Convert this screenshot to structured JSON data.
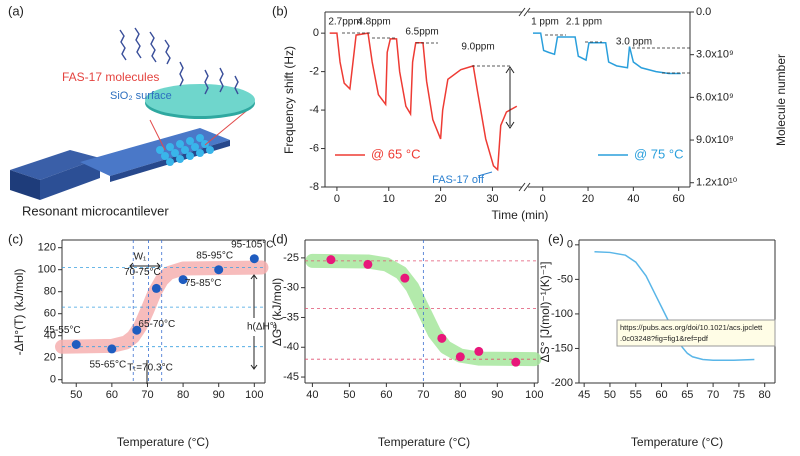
{
  "panel_labels": [
    "(a)",
    "(b)",
    "(c)",
    "(d)",
    "(e)"
  ],
  "illustration": {
    "texts": [
      "FAS-17 molecules",
      "SiO₂ surface",
      "Resonant microcantilever"
    ]
  },
  "chart_data": [
    {
      "type": "line",
      "x_label": "Time (min)",
      "y_label": "Frequency shift (Hz)",
      "xlim": [
        -2.3,
        35.7
      ],
      "xticks": [
        0,
        10,
        20,
        30
      ],
      "ylim": [
        -8,
        1.1
      ],
      "yticks": [
        -8,
        -6,
        -4,
        -2,
        0
      ],
      "series": [
        {
          "name": "@ 65 °C",
          "color": "#ee3b34",
          "x": [
            -1.4,
            0,
            0.6,
            1.4,
            2.5,
            3.1,
            3.7,
            6,
            6.8,
            8,
            9.4,
            9.7,
            10.3,
            11.5,
            12.1,
            13.3,
            14.2,
            14.6,
            15.2,
            16.6,
            17.3,
            18.5,
            20,
            20.4,
            21.4,
            23.9,
            26.3,
            27.1,
            28.7,
            30.2,
            31,
            31.6,
            32.7,
            34.7
          ],
          "values": [
            0,
            0,
            -1.5,
            -2.6,
            -2.9,
            -1.5,
            -0.1,
            0,
            -1.5,
            -3.2,
            -3.7,
            -1,
            -0.3,
            -0.3,
            -2,
            -3.8,
            -4.2,
            -1.5,
            -0.5,
            -0.5,
            -2.5,
            -4.5,
            -5.5,
            -4,
            -2.4,
            -1.9,
            -1.7,
            -3,
            -5.5,
            -6.9,
            -7.1,
            -4.8,
            -4.1,
            -3.8
          ]
        }
      ],
      "annotations": [
        "2.7ppm",
        "4.8ppm",
        "6.5ppm",
        "9.0ppm",
        "FAS-17 off"
      ]
    },
    {
      "type": "line",
      "y2_label": "Molecule number",
      "xlim": [
        -6.5,
        65
      ],
      "xticks": [
        0,
        20,
        40,
        60
      ],
      "ylim": [
        -8,
        1.1
      ],
      "y2lim": [
        12300000000,
        0
      ],
      "y2ticks": [
        {
          "value": 0,
          "label": "0.0"
        },
        {
          "value": 3000000000,
          "label": "3.0x10⁹"
        },
        {
          "value": 6000000000,
          "label": "6.0x10⁹"
        },
        {
          "value": 9000000000,
          "label": "9.0x10⁹"
        },
        {
          "value": 12000000000,
          "label": "1.2x10¹⁰"
        }
      ],
      "series": [
        {
          "name": "@ 75 °C",
          "color": "#2a9fdc",
          "x": [
            -4.3,
            -0.9,
            0.4,
            2.6,
            5.2,
            6.5,
            14.3,
            15.7,
            19.1,
            20.4,
            27.8,
            29.1,
            32.6,
            37.4,
            38.3,
            40,
            43.5,
            50,
            55.7,
            60.9
          ],
          "values": [
            0,
            0,
            -0.9,
            -1.0,
            -1.1,
            -0.2,
            -0.2,
            -1.2,
            -1.4,
            -0.5,
            -0.5,
            -1.5,
            -1.7,
            -1.8,
            -0.7,
            -1.5,
            -1.8,
            -2.0,
            -2.1,
            -2.1
          ]
        }
      ],
      "annotations": [
        "1 ppm",
        "2.1 ppm",
        "3.0 ppm"
      ]
    },
    {
      "type": "scatter",
      "x_label": "Temperature (°C)",
      "y_label": "-ΔH°(T) (kJ/mol)",
      "xlim": [
        46,
        103
      ],
      "xticks": [
        50,
        60,
        70,
        80,
        90,
        100
      ],
      "ylim": [
        -3,
        127
      ],
      "yticks": [
        0,
        20,
        40,
        60,
        80,
        100,
        120
      ],
      "hlines": [
        102,
        66,
        30
      ],
      "vlines": [
        66,
        70.3,
        74
      ],
      "band": {
        "color": "#f6b0b0",
        "x": [
          46,
          60,
          64,
          66,
          68,
          70,
          72,
          74,
          76,
          80,
          102
        ],
        "values": [
          30,
          30.7,
          33.9,
          39,
          48.7,
          63.5,
          79.3,
          90.7,
          97,
          101.1,
          102
        ]
      },
      "series": [
        {
          "color": "#1f5cc0",
          "x": [
            50,
            60,
            67,
            72.5,
            80,
            90,
            100
          ],
          "values": [
            32,
            28,
            45,
            83,
            91,
            100,
            110
          ]
        }
      ],
      "point_labels": [
        "45-55°C",
        "55-65°C",
        "65-70°C",
        "70-75°C",
        "75-85°C",
        "85-95°C",
        "95-105°C"
      ],
      "annotations": [
        "W₁",
        "h(ΔH°)",
        "Tₜ=70.3°C"
      ]
    },
    {
      "type": "scatter",
      "x_label": "Temperature (°C)",
      "y_label": "ΔG° (kJ/mol)",
      "xlim": [
        38,
        101
      ],
      "xticks": [
        40,
        50,
        60,
        70,
        80,
        90,
        100
      ],
      "ylim": [
        -46,
        -22
      ],
      "yticks": [
        -45,
        -40,
        -35,
        -30,
        -25
      ],
      "hlines": [
        -25.5,
        -33.5,
        -42
      ],
      "vlines": [
        70
      ],
      "band": {
        "color": "#a6e69c",
        "x": [
          40,
          55,
          60,
          64,
          67,
          70,
          73,
          76,
          80,
          85,
          100
        ],
        "values": [
          -25.5,
          -25.6,
          -26.1,
          -27.5,
          -29.9,
          -33.75,
          -37.6,
          -40,
          -41.4,
          -41.9,
          -42
        ]
      },
      "series": [
        {
          "color": "#e8177a",
          "x": [
            45,
            55,
            65,
            75,
            80,
            85,
            95
          ],
          "values": [
            -25.3,
            -26.1,
            -28.4,
            -38.5,
            -41.6,
            -40.7,
            -42.5
          ]
        }
      ]
    },
    {
      "type": "line",
      "x_label": "Temperature (°C)",
      "y_label": "ΔS° [J(mol)⁻¹(K)⁻¹]",
      "xlim": [
        44,
        82
      ],
      "xticks": [
        45,
        50,
        55,
        60,
        65,
        70,
        75,
        80
      ],
      "ylim": [
        -200,
        7
      ],
      "yticks": [
        -200,
        -150,
        -100,
        -50,
        0
      ],
      "series": [
        {
          "color": "#5ab6e8",
          "x": [
            47,
            50,
            53,
            55,
            57,
            59,
            60,
            61,
            62,
            63,
            64,
            65,
            66,
            68,
            70,
            74,
            78
          ],
          "values": [
            -10,
            -11,
            -15,
            -25,
            -45,
            -75,
            -90,
            -105,
            -120,
            -135,
            -148,
            -157,
            -162,
            -166,
            -167,
            -167,
            -166
          ]
        }
      ],
      "tooltip": [
        "https://pubs.acs.org/doi/10.1021/acs.jpclett",
        ".0c03248?fig=fig1&ref=pdf"
      ]
    }
  ]
}
